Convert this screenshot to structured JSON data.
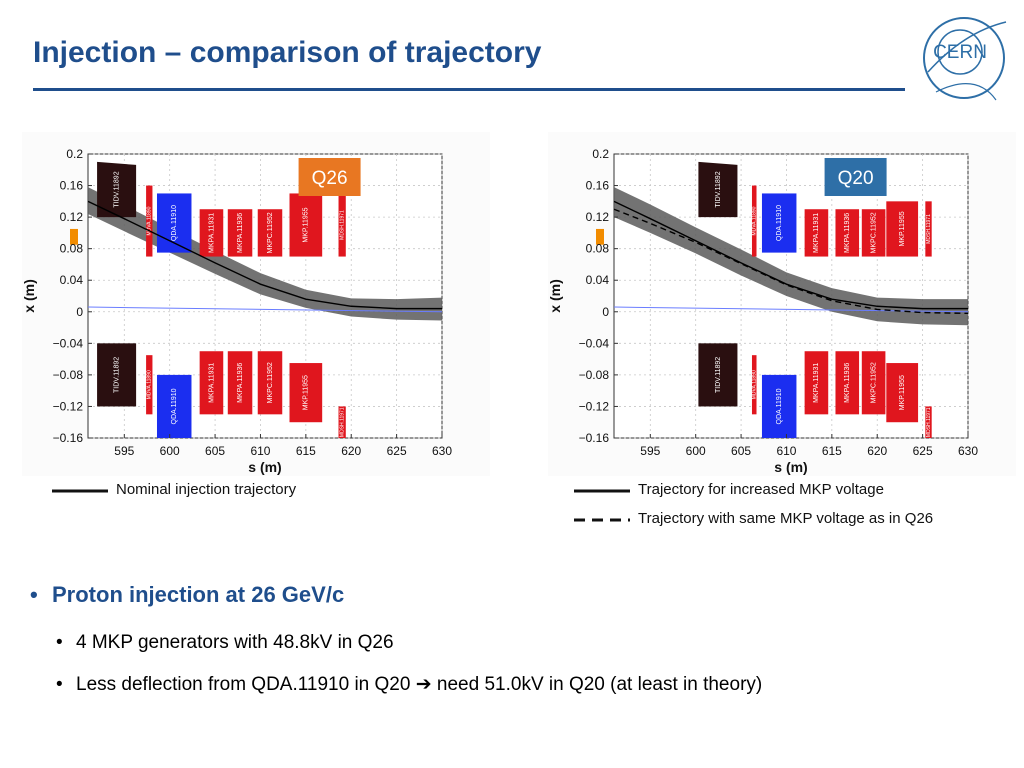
{
  "title": "Injection – comparison of trajectory",
  "logo_text": "CERN",
  "colors": {
    "title": "#1f4e8c",
    "tidv_block": "#2a0f10",
    "mkp_block": "#e0161e",
    "qda_block": "#1b2ef0",
    "envelope": "#5a5a5a",
    "reference_line": "#6a7dff",
    "label_q26": "#e87722",
    "label_q20": "#2e6fa7",
    "marker": "#f28c00"
  },
  "legend": {
    "left": [
      {
        "label": "Nominal injection trajectory",
        "style": "solid"
      }
    ],
    "right": [
      {
        "label": "Trajectory for increased MKP voltage",
        "style": "solid"
      },
      {
        "label": "Trajectory with same MKP voltage as in Q26",
        "style": "dashed"
      }
    ]
  },
  "bullets": {
    "main": "Proton injection at 26 GeV/c",
    "sub": [
      "4 MKP generators with 48.8kV in Q26",
      "Less deflection from QDA.11910 in Q20 ➔ need 51.0kV in Q20 (at least in theory)"
    ]
  },
  "chart_data": [
    {
      "type": "line",
      "label_box": "Q26",
      "xlabel": "s (m)",
      "ylabel": "x (m)",
      "xlim": [
        591,
        630
      ],
      "ylim": [
        -0.16,
        0.2
      ],
      "xticks": [
        595,
        600,
        605,
        610,
        615,
        620,
        625,
        630
      ],
      "yticks": [
        0.2,
        0.16,
        0.12,
        0.08,
        0.04,
        0,
        -0.04,
        -0.08,
        -0.12,
        -0.16
      ],
      "ytick_labels": [
        "0.2",
        "0.16",
        "0.12",
        "0.08",
        "0.04",
        "0",
        "−0.04",
        "−0.08",
        "−0.12",
        "−0.16"
      ],
      "grid": true,
      "series": [
        {
          "style": "solid",
          "color": "#000000",
          "x": [
            591,
            595,
            600,
            605,
            610,
            615,
            620,
            625,
            630
          ],
          "y": [
            0.14,
            0.118,
            0.09,
            0.062,
            0.035,
            0.016,
            0.007,
            0.004,
            0.004
          ]
        },
        {
          "style": "envelope-upper",
          "color": "#5a5a5a",
          "x": [
            591,
            595,
            600,
            605,
            610,
            615,
            620,
            625,
            630
          ],
          "y": [
            0.158,
            0.135,
            0.106,
            0.077,
            0.049,
            0.028,
            0.017,
            0.016,
            0.018
          ]
        },
        {
          "style": "envelope-lower",
          "color": "#5a5a5a",
          "x": [
            591,
            595,
            600,
            605,
            610,
            615,
            620,
            625,
            630
          ],
          "y": [
            0.124,
            0.102,
            0.075,
            0.048,
            0.022,
            0.005,
            -0.006,
            -0.01,
            -0.011
          ]
        },
        {
          "style": "reference",
          "color": "#6a7dff",
          "x": [
            591,
            630
          ],
          "y": [
            0.006,
            0.0
          ]
        }
      ],
      "elements": [
        {
          "name": "TIDV.11892",
          "kind": "tidv",
          "s": [
            592.0,
            596.3
          ],
          "upper": [
            0.19,
            0.12
          ],
          "lower": [
            -0.04,
            -0.12
          ]
        },
        {
          "name": "MDVA.11890",
          "kind": "mkp",
          "s": [
            597.4,
            598.1
          ],
          "upper": [
            0.16,
            0.07
          ],
          "lower": [
            -0.055,
            -0.13
          ]
        },
        {
          "name": "QDA.11910",
          "kind": "qda",
          "s": [
            598.6,
            602.4
          ],
          "upper": [
            0.15,
            0.075
          ],
          "lower": [
            -0.08,
            -0.16
          ]
        },
        {
          "name": "MKPA.11931",
          "kind": "mkp",
          "s": [
            603.3,
            605.9
          ],
          "upper": [
            0.13,
            0.07
          ],
          "lower": [
            -0.05,
            -0.13
          ]
        },
        {
          "name": "MKPA.11936",
          "kind": "mkp",
          "s": [
            606.4,
            609.1
          ],
          "upper": [
            0.13,
            0.07
          ],
          "lower": [
            -0.05,
            -0.13
          ]
        },
        {
          "name": "MKPC.11952",
          "kind": "mkp",
          "s": [
            609.7,
            612.4
          ],
          "upper": [
            0.13,
            0.07
          ],
          "lower": [
            -0.05,
            -0.13
          ]
        },
        {
          "name": "MKP.11955",
          "kind": "mkp",
          "s": [
            613.2,
            616.8
          ],
          "upper": [
            0.15,
            0.07
          ],
          "lower": [
            -0.065,
            -0.14
          ]
        },
        {
          "name": "MDSH.11971",
          "kind": "mkp",
          "s": [
            618.6,
            619.4
          ],
          "upper": [
            0.15,
            0.07
          ],
          "lower": [
            -0.12,
            -0.16
          ]
        }
      ]
    },
    {
      "type": "line",
      "label_box": "Q20",
      "xlabel": "s (m)",
      "ylabel": "x (m)",
      "xlim": [
        591,
        630
      ],
      "ylim": [
        -0.16,
        0.2
      ],
      "xticks": [
        595,
        600,
        605,
        610,
        615,
        620,
        625,
        630
      ],
      "yticks": [
        0.2,
        0.16,
        0.12,
        0.08,
        0.04,
        0,
        -0.04,
        -0.08,
        -0.12,
        -0.16
      ],
      "ytick_labels": [
        "0.2",
        "0.16",
        "0.12",
        "0.08",
        "0.04",
        "0",
        "−0.04",
        "−0.08",
        "−0.12",
        "−0.16"
      ],
      "grid": true,
      "series": [
        {
          "style": "solid",
          "color": "#000000",
          "x": [
            591,
            595,
            600,
            605,
            610,
            615,
            620,
            625,
            630
          ],
          "y": [
            0.14,
            0.118,
            0.09,
            0.062,
            0.035,
            0.016,
            0.007,
            0.004,
            0.004
          ]
        },
        {
          "style": "dashed",
          "color": "#000000",
          "x": [
            591,
            595,
            600,
            605,
            610,
            615,
            620,
            625,
            630
          ],
          "y": [
            0.13,
            0.112,
            0.088,
            0.061,
            0.034,
            0.014,
            0.003,
            -0.001,
            -0.002
          ]
        },
        {
          "style": "envelope-upper",
          "color": "#5a5a5a",
          "x": [
            591,
            595,
            600,
            605,
            610,
            615,
            620,
            625,
            630
          ],
          "y": [
            0.158,
            0.136,
            0.107,
            0.079,
            0.05,
            0.03,
            0.018,
            0.016,
            0.016
          ]
        },
        {
          "style": "envelope-lower",
          "color": "#5a5a5a",
          "x": [
            591,
            595,
            600,
            605,
            610,
            615,
            620,
            625,
            630
          ],
          "y": [
            0.12,
            0.1,
            0.074,
            0.046,
            0.02,
            0.0,
            -0.012,
            -0.016,
            -0.017
          ]
        },
        {
          "style": "reference",
          "color": "#6a7dff",
          "x": [
            591,
            630
          ],
          "y": [
            0.006,
            0.0
          ]
        }
      ],
      "elements": [
        {
          "name": "TIDV.11892",
          "kind": "tidv",
          "s": [
            600.3,
            604.6
          ],
          "upper": [
            0.19,
            0.12
          ],
          "lower": [
            -0.04,
            -0.12
          ]
        },
        {
          "name": "MDVA.11890",
          "kind": "mkp",
          "s": [
            606.2,
            606.7
          ],
          "upper": [
            0.16,
            0.07
          ],
          "lower": [
            -0.055,
            -0.13
          ]
        },
        {
          "name": "QDA.11910",
          "kind": "qda",
          "s": [
            607.3,
            611.1
          ],
          "upper": [
            0.15,
            0.075
          ],
          "lower": [
            -0.08,
            -0.16
          ]
        },
        {
          "name": "MKPA.11931",
          "kind": "mkp",
          "s": [
            612.0,
            614.6
          ],
          "upper": [
            0.13,
            0.07
          ],
          "lower": [
            -0.05,
            -0.13
          ]
        },
        {
          "name": "MKPA.11936",
          "kind": "mkp",
          "s": [
            615.4,
            618.0
          ],
          "upper": [
            0.13,
            0.07
          ],
          "lower": [
            -0.05,
            -0.13
          ]
        },
        {
          "name": "MKPC.11952",
          "kind": "mkp",
          "s": [
            618.3,
            620.9
          ],
          "upper": [
            0.13,
            0.07
          ],
          "lower": [
            -0.05,
            -0.13
          ]
        },
        {
          "name": "MKP.11955",
          "kind": "mkp",
          "s": [
            621.0,
            624.5
          ],
          "upper": [
            0.14,
            0.07
          ],
          "lower": [
            -0.065,
            -0.14
          ]
        },
        {
          "name": "MDSH.11971",
          "kind": "mkp",
          "s": [
            625.3,
            626.0
          ],
          "upper": [
            0.14,
            0.07
          ],
          "lower": [
            -0.12,
            -0.16
          ]
        }
      ]
    }
  ]
}
